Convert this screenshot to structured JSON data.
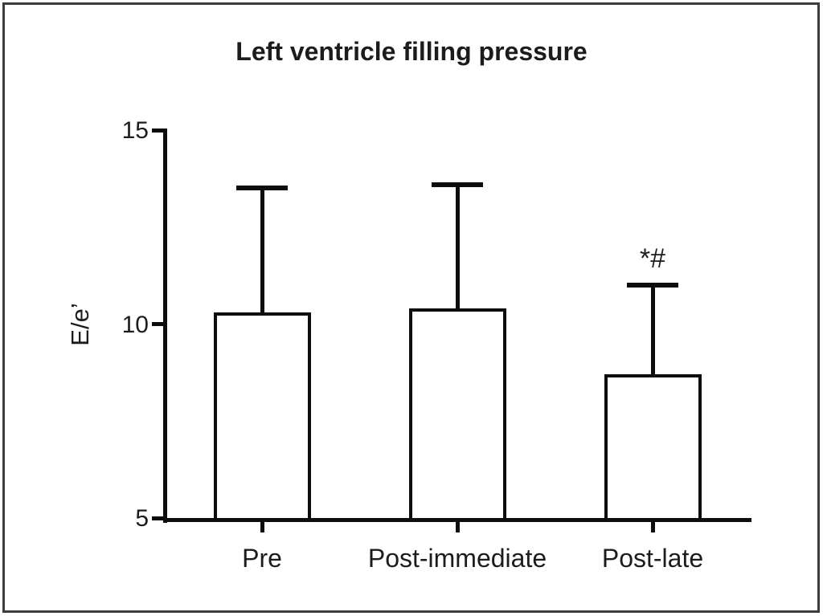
{
  "chart_data": {
    "type": "bar",
    "title": "Left ventricle filling pressure",
    "ylabel": "E/e’",
    "xlabel": "",
    "categories": [
      "Pre",
      "Post-immediate",
      "Post-late"
    ],
    "values": [
      10.3,
      10.4,
      8.7
    ],
    "errors_upper": [
      3.2,
      3.2,
      2.3
    ],
    "error_bars": "upper-only-with-caps",
    "ylim": [
      5,
      15
    ],
    "yticks": [
      5,
      10,
      15
    ],
    "grid": false,
    "legend": "none",
    "bar_fill": "#ffffff",
    "bar_stroke": "#0d0d0d",
    "axis_color": "#0d0d0d",
    "text_color": "#1c1c1c",
    "annotations": [
      {
        "category": "Post-late",
        "text": "*#"
      }
    ]
  },
  "frame": {
    "background": "#ffffff",
    "border_color": "#3c3c3c"
  }
}
